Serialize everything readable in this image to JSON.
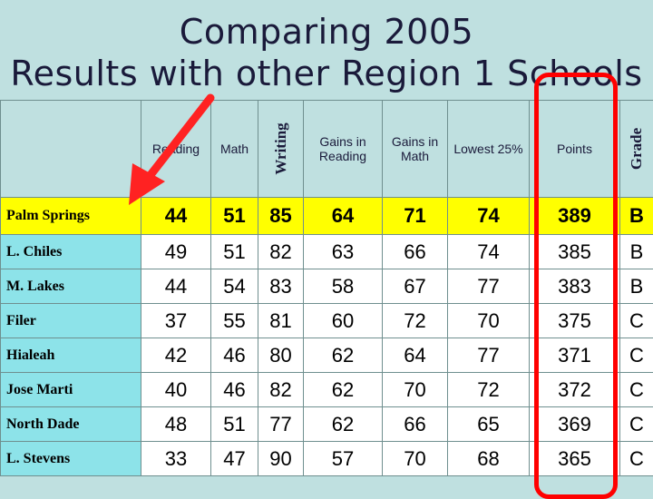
{
  "title": {
    "line1": "Comparing 2005",
    "line2": "Results with other Region 1 Schools"
  },
  "columns": [
    "Reading",
    "Math",
    "Writing",
    "Gains in Reading",
    "Gains in Math",
    "Lowest 25%",
    "Points",
    "Grade"
  ],
  "colors": {
    "background": "#bfe0e0",
    "school_cell": "#8de3e9",
    "highlight": "#ffff00",
    "annotation": "#ff0000"
  },
  "rows": [
    {
      "school": "Palm Springs",
      "values": [
        "44",
        "51",
        "85",
        "64",
        "71",
        "74",
        "389",
        "B"
      ],
      "highlight": true
    },
    {
      "school": "L. Chiles",
      "values": [
        "49",
        "51",
        "82",
        "63",
        "66",
        "74",
        "385",
        "B"
      ]
    },
    {
      "school": "M. Lakes",
      "values": [
        "44",
        "54",
        "83",
        "58",
        "67",
        "77",
        "383",
        "B"
      ]
    },
    {
      "school": "Filer",
      "values": [
        "37",
        "55",
        "81",
        "60",
        "72",
        "70",
        "375",
        "C"
      ]
    },
    {
      "school": "Hialeah",
      "values": [
        "42",
        "46",
        "80",
        "62",
        "64",
        "77",
        "371",
        "C"
      ]
    },
    {
      "school": "Jose Marti",
      "values": [
        "40",
        "46",
        "82",
        "62",
        "70",
        "72",
        "372",
        "C"
      ]
    },
    {
      "school": "North Dade",
      "values": [
        "48",
        "51",
        "77",
        "62",
        "66",
        "65",
        "369",
        "C"
      ]
    },
    {
      "school": "L. Stevens",
      "values": [
        "33",
        "47",
        "90",
        "57",
        "70",
        "68",
        "365",
        "C"
      ]
    }
  ]
}
